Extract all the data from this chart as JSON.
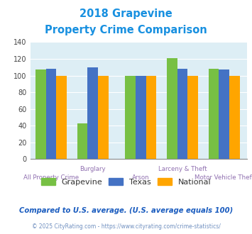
{
  "title_line1": "2018 Grapevine",
  "title_line2": "Property Crime Comparison",
  "title_color": "#1890e0",
  "categories": [
    "All Property Crime",
    "Burglary",
    "Arson",
    "Larceny & Theft",
    "Motor Vehicle Theft"
  ],
  "grapevine": [
    107,
    43,
    100,
    121,
    108
  ],
  "texas": [
    108,
    110,
    100,
    108,
    107
  ],
  "national": [
    100,
    100,
    100,
    100,
    100
  ],
  "color_grapevine": "#77c044",
  "color_texas": "#4472c4",
  "color_national": "#ffa500",
  "ylim": [
    0,
    140
  ],
  "yticks": [
    0,
    20,
    40,
    60,
    80,
    100,
    120,
    140
  ],
  "legend_labels": [
    "Grapevine",
    "Texas",
    "National"
  ],
  "footnote1": "Compared to U.S. average. (U.S. average equals 100)",
  "footnote2": "© 2025 CityRating.com - https://www.cityrating.com/crime-statistics/",
  "footnote1_color": "#1a5cbf",
  "footnote2_color": "#7090c0",
  "bg_color": "#ddeef5",
  "label_color": "#9070b0",
  "top_labels": {
    "1": "Burglary",
    "3": "Larceny & Theft"
  },
  "bot_labels": {
    "0": "All Property Crime",
    "2": "Arson",
    "4": "Motor Vehicle Theft"
  },
  "x_positions": [
    0.5,
    1.5,
    2.65,
    3.65,
    4.65
  ],
  "bar_width": 0.25
}
